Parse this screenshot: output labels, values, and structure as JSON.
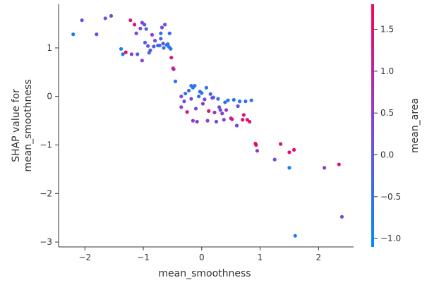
{
  "chart_data": {
    "type": "scatter",
    "title": "",
    "xlabel": "mean_smoothness",
    "ylabel_lines": [
      "SHAP value for",
      "mean_smoothness"
    ],
    "xlim": [
      -2.45,
      2.6
    ],
    "ylim": [
      -3.1,
      1.9
    ],
    "x_ticks": [
      -2,
      -1,
      0,
      1,
      2
    ],
    "x_tick_labels": [
      "−2",
      "−1",
      "0",
      "1",
      "2"
    ],
    "y_ticks": [
      -3,
      -2,
      -1,
      0,
      1
    ],
    "y_tick_labels": [
      "−3",
      "−2",
      "−1",
      "0",
      "1"
    ],
    "grid": false,
    "colorbar": {
      "label": "mean_area",
      "range": [
        -1.1,
        1.8
      ],
      "ticks": [
        -1.0,
        -0.5,
        0.0,
        0.5,
        1.0,
        1.5
      ],
      "tick_labels": [
        "−1.0",
        "−0.5",
        "0.0",
        "0.5",
        "1.0",
        "1.5"
      ],
      "colormap": [
        "#008afb",
        "#7e44d9",
        "#ff0052"
      ]
    },
    "points": [
      [
        -2.2,
        1.28,
        -0.8
      ],
      [
        -2.05,
        1.57,
        0.2
      ],
      [
        -1.8,
        1.28,
        0.1
      ],
      [
        -1.65,
        1.61,
        0.0
      ],
      [
        -1.55,
        1.66,
        0.1
      ],
      [
        -1.38,
        0.98,
        -0.9
      ],
      [
        -1.35,
        0.87,
        -0.8
      ],
      [
        -1.3,
        0.91,
        1.5
      ],
      [
        -1.22,
        1.57,
        1.3
      ],
      [
        -1.2,
        0.87,
        0.7
      ],
      [
        -1.15,
        1.48,
        1.6
      ],
      [
        -1.12,
        1.3,
        0.3
      ],
      [
        -1.1,
        0.87,
        -0.3
      ],
      [
        -1.05,
        1.4,
        0.2
      ],
      [
        -1.02,
        0.74,
        0.4
      ],
      [
        -1.02,
        1.52,
        0.3
      ],
      [
        -0.98,
        1.48,
        0.1
      ],
      [
        -0.95,
        1.39,
        -0.2
      ],
      [
        -0.97,
        1.11,
        -0.1
      ],
      [
        -0.92,
        1.04,
        0.1
      ],
      [
        -0.9,
        0.9,
        -0.5
      ],
      [
        -0.88,
        0.95,
        0.0
      ],
      [
        -0.85,
        1.27,
        0.5
      ],
      [
        -0.82,
        1.03,
        -0.2
      ],
      [
        -0.8,
        1.15,
        0.2
      ],
      [
        -0.75,
        1.05,
        -0.4
      ],
      [
        -0.72,
        1.05,
        -0.5
      ],
      [
        -0.7,
        1.19,
        -0.2
      ],
      [
        -0.7,
        1.3,
        -0.6
      ],
      [
        -0.68,
        1.42,
        0.4
      ],
      [
        -0.66,
        1.09,
        0.1
      ],
      [
        -0.65,
        1.0,
        -0.3
      ],
      [
        -0.63,
        1.48,
        0.1
      ],
      [
        -0.6,
        1.06,
        -0.6
      ],
      [
        -0.58,
        1.08,
        -0.7
      ],
      [
        -0.56,
        1.02,
        -0.5
      ],
      [
        -0.55,
        1.3,
        -0.4
      ],
      [
        -0.53,
        0.98,
        -0.8
      ],
      [
        -0.52,
        0.8,
        1.3
      ],
      [
        -0.49,
        0.58,
        1.4
      ],
      [
        -0.48,
        0.56,
        1.0
      ],
      [
        -0.45,
        0.31,
        -0.6
      ],
      [
        -0.35,
        0.0,
        0.3
      ],
      [
        -0.35,
        -0.22,
        0.4
      ],
      [
        -0.3,
        -0.1,
        0.2
      ],
      [
        -0.28,
        0.06,
        -0.7
      ],
      [
        -0.25,
        -0.32,
        1.4
      ],
      [
        -0.22,
        0.12,
        -0.3
      ],
      [
        -0.18,
        0.22,
        -0.6
      ],
      [
        -0.18,
        -0.05,
        0.1
      ],
      [
        -0.15,
        -0.5,
        0.5
      ],
      [
        -0.15,
        0.18,
        -0.7
      ],
      [
        -0.12,
        0.22,
        -0.5
      ],
      [
        -0.1,
        -0.25,
        0.3
      ],
      [
        -0.08,
        -0.52,
        0.4
      ],
      [
        -0.05,
        0.0,
        -0.6
      ],
      [
        -0.03,
        0.1,
        -0.5
      ],
      [
        0.0,
        0.07,
        -0.7
      ],
      [
        0.02,
        -0.15,
        0.6
      ],
      [
        0.05,
        -0.06,
        0.3
      ],
      [
        0.08,
        0.18,
        -0.7
      ],
      [
        0.1,
        -0.5,
        0.5
      ],
      [
        0.12,
        -0.3,
        1.4
      ],
      [
        0.15,
        0.05,
        -0.4
      ],
      [
        0.18,
        -0.03,
        0.2
      ],
      [
        0.2,
        -0.02,
        0.0
      ],
      [
        0.22,
        -0.33,
        0.8
      ],
      [
        0.25,
        -0.52,
        0.3
      ],
      [
        0.28,
        -0.05,
        -0.5
      ],
      [
        0.3,
        -0.22,
        0.2
      ],
      [
        0.32,
        -0.28,
        0.1
      ],
      [
        0.35,
        -0.35,
        0.5
      ],
      [
        0.38,
        -0.48,
        0.4
      ],
      [
        0.4,
        -0.12,
        -0.4
      ],
      [
        0.42,
        -0.28,
        0.6
      ],
      [
        0.45,
        -0.08,
        -0.6
      ],
      [
        0.5,
        -0.45,
        1.2
      ],
      [
        0.52,
        -0.47,
        1.3
      ],
      [
        0.55,
        -0.07,
        -0.6
      ],
      [
        0.6,
        -0.6,
        0.3
      ],
      [
        0.62,
        -0.2,
        0.2
      ],
      [
        0.65,
        -0.1,
        -0.7
      ],
      [
        0.7,
        -0.48,
        1.5
      ],
      [
        0.72,
        -0.38,
        1.3
      ],
      [
        0.75,
        -0.1,
        -0.5
      ],
      [
        0.78,
        -0.48,
        1.4
      ],
      [
        0.82,
        -0.52,
        1.3
      ],
      [
        0.85,
        -0.08,
        -0.5
      ],
      [
        0.92,
        -0.97,
        1.6
      ],
      [
        0.93,
        -1.0,
        1.5
      ],
      [
        0.95,
        -1.12,
        0.6
      ],
      [
        1.25,
        -1.3,
        0.2
      ],
      [
        1.35,
        -0.98,
        1.4
      ],
      [
        1.5,
        -1.15,
        1.5
      ],
      [
        1.58,
        -1.1,
        1.6
      ],
      [
        1.5,
        -1.47,
        -1.0
      ],
      [
        1.6,
        -2.87,
        -0.8
      ],
      [
        2.1,
        -1.47,
        0.6
      ],
      [
        2.35,
        -1.4,
        1.4
      ],
      [
        2.4,
        -2.48,
        0.3
      ]
    ]
  }
}
